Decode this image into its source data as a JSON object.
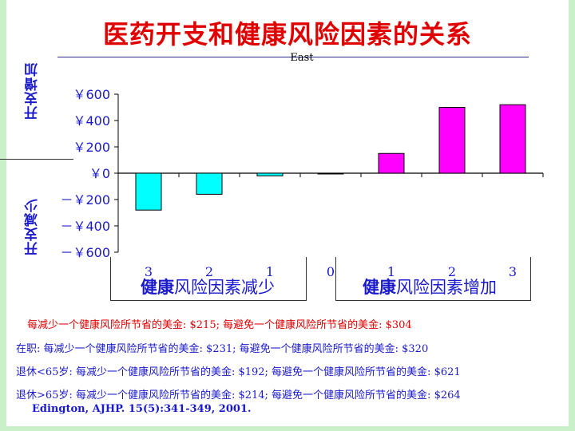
{
  "title": "医药开支和健康风险因素的关系",
  "chart_data": {
    "type": "bar",
    "title": "医药开支和健康风险因素的关系",
    "legend": "East",
    "categories": [
      "3",
      "2",
      "1",
      "0",
      "1",
      "2",
      "3"
    ],
    "values": [
      -280,
      -160,
      -20,
      0,
      150,
      500,
      520
    ],
    "colors": [
      "#00ffff",
      "#00ffff",
      "#00ffff",
      "#00ffff",
      "#ff00ff",
      "#ff00ff",
      "#ff00ff"
    ],
    "ylim": [
      -600,
      600
    ],
    "yticks": [
      600,
      400,
      200,
      0,
      -200,
      -400,
      -600
    ],
    "ytick_labels": [
      "￥600",
      "￥400",
      "￥200",
      "￥0",
      "－￥200",
      "－￥400",
      "－￥600"
    ],
    "ylabel_top": "开支增加",
    "ylabel_bottom": "开支减少",
    "group_left": {
      "bold": "健康",
      "rest": "风险因素减少"
    },
    "group_right": {
      "bold": "健康",
      "rest": "风险因素增加"
    }
  },
  "notes": [
    "每减少一个健康风险所节省的美金: $215; 每避免一个健康风险所节省的美金: $304",
    "在职: 每减少一个健康风险所节省的美金: $231; 每避免一个健康风险所节省的美金: $320",
    "退休<65岁: 每减少一个健康风险所节省的美金: $192; 每避免一个健康风险所节省的美金: $621",
    "退休>65岁: 每减少一个健康风险所节省的美金: $214; 每避免一个健康风险所节省的美金: $264"
  ],
  "citation": "Edington, AJHP. 15(5):341-349, 2001."
}
